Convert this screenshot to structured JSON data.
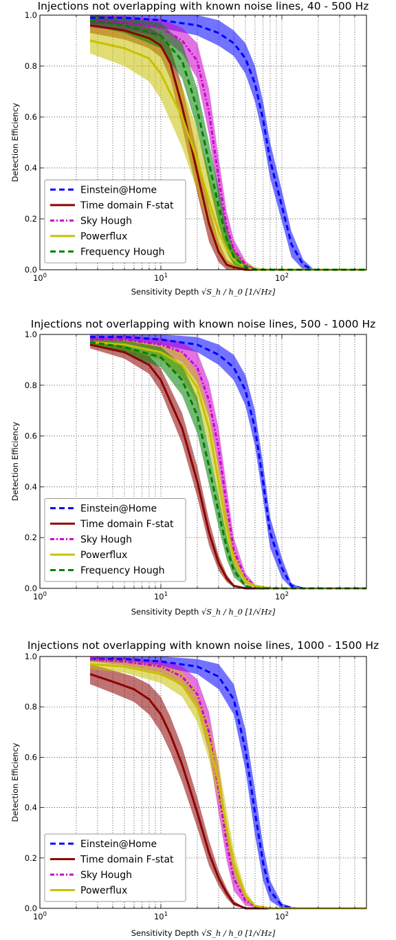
{
  "colors": {
    "Einstein@Home": "#0000ff",
    "Time domain F-stat": "#8b0000",
    "Sky Hough": "#cc00cc",
    "Powerflux": "#c8c000",
    "Frequency Hough": "#007f00"
  },
  "chart_data": [
    {
      "type": "line",
      "title": "Injections not overlapping with known noise lines, 40 - 500 Hz",
      "xlabel_text": "Sensitivity Depth",
      "xlabel_math": "√S_h / h_0  [1/√Hz]",
      "ylabel": "Detection Efficiency",
      "xscale": "log",
      "xlim": [
        1,
        500
      ],
      "ylim": [
        0,
        1
      ],
      "xticks": [
        "10^0",
        "10^1",
        "10^2"
      ],
      "yticks": [
        "0.0",
        "0.2",
        "0.4",
        "0.6",
        "0.8",
        "1.0"
      ],
      "grid": true,
      "legend_position": "lower-left",
      "series": [
        {
          "name": "Einstein@Home",
          "style": "dashed",
          "x": [
            2.6,
            5,
            10,
            20,
            30,
            40,
            50,
            60,
            70,
            80,
            100,
            120,
            150,
            180,
            250,
            500
          ],
          "y": [
            0.99,
            0.99,
            0.98,
            0.96,
            0.93,
            0.89,
            0.83,
            0.73,
            0.59,
            0.43,
            0.25,
            0.1,
            0.02,
            0.0,
            0.0,
            0.0
          ],
          "band": [
            0.025,
            0.025,
            0.03,
            0.04,
            0.05,
            0.05,
            0.06,
            0.07,
            0.07,
            0.07,
            0.06,
            0.05,
            0.02,
            0.005,
            0.0,
            0.0
          ]
        },
        {
          "name": "Time domain F-stat",
          "style": "solid",
          "x": [
            2.6,
            5,
            8,
            10,
            12,
            15,
            20,
            25,
            30,
            35,
            40,
            50,
            80,
            500
          ],
          "y": [
            0.96,
            0.94,
            0.91,
            0.88,
            0.81,
            0.64,
            0.38,
            0.18,
            0.07,
            0.02,
            0.01,
            0.0,
            0.0,
            0.0
          ],
          "band": [
            0.03,
            0.035,
            0.04,
            0.045,
            0.06,
            0.08,
            0.08,
            0.07,
            0.04,
            0.02,
            0.01,
            0.0,
            0.0,
            0.0
          ]
        },
        {
          "name": "Sky Hough",
          "style": "dashdot",
          "x": [
            2.6,
            5,
            10,
            15,
            20,
            25,
            30,
            35,
            40,
            50,
            60,
            80,
            500
          ],
          "y": [
            0.98,
            0.97,
            0.95,
            0.9,
            0.82,
            0.62,
            0.36,
            0.17,
            0.08,
            0.02,
            0.0,
            0.0,
            0.0
          ],
          "band": [
            0.02,
            0.025,
            0.035,
            0.05,
            0.07,
            0.09,
            0.08,
            0.06,
            0.04,
            0.015,
            0.005,
            0.0,
            0.0
          ]
        },
        {
          "name": "Powerflux",
          "style": "solid",
          "x": [
            2.6,
            5,
            8,
            10,
            15,
            20,
            25,
            30,
            35,
            40,
            50,
            60,
            80,
            500
          ],
          "y": [
            0.9,
            0.87,
            0.83,
            0.77,
            0.6,
            0.43,
            0.27,
            0.15,
            0.08,
            0.04,
            0.01,
            0.0,
            0.0,
            0.0
          ],
          "band": [
            0.05,
            0.07,
            0.09,
            0.1,
            0.12,
            0.12,
            0.11,
            0.09,
            0.06,
            0.04,
            0.02,
            0.01,
            0.0,
            0.0
          ]
        },
        {
          "name": "Frequency Hough",
          "style": "dashed",
          "x": [
            2.6,
            5,
            10,
            15,
            20,
            25,
            30,
            35,
            40,
            50,
            60,
            80,
            500
          ],
          "y": [
            0.98,
            0.96,
            0.92,
            0.82,
            0.63,
            0.42,
            0.25,
            0.12,
            0.05,
            0.01,
            0.0,
            0.0,
            0.0
          ],
          "band": [
            0.02,
            0.03,
            0.05,
            0.07,
            0.08,
            0.08,
            0.07,
            0.05,
            0.03,
            0.01,
            0.005,
            0.0,
            0.0
          ]
        }
      ]
    },
    {
      "type": "line",
      "title": "Injections not overlapping with known noise lines, 500 - 1000 Hz",
      "xlabel_text": "Sensitivity Depth",
      "xlabel_math": "√S_h / h_0  [1/√Hz]",
      "ylabel": "Detection Efficiency",
      "xscale": "log",
      "xlim": [
        1,
        500
      ],
      "ylim": [
        0,
        1
      ],
      "xticks": [
        "10^0",
        "10^1",
        "10^2"
      ],
      "yticks": [
        "0.0",
        "0.2",
        "0.4",
        "0.6",
        "0.8",
        "1.0"
      ],
      "grid": true,
      "legend_position": "lower-left",
      "series": [
        {
          "name": "Einstein@Home",
          "style": "dashed",
          "x": [
            2.6,
            5,
            10,
            20,
            30,
            40,
            50,
            60,
            70,
            80,
            100,
            120,
            150,
            500
          ],
          "y": [
            0.99,
            0.99,
            0.98,
            0.96,
            0.92,
            0.87,
            0.78,
            0.63,
            0.42,
            0.22,
            0.08,
            0.01,
            0.0,
            0.0
          ],
          "band": [
            0.01,
            0.015,
            0.02,
            0.03,
            0.04,
            0.05,
            0.06,
            0.07,
            0.07,
            0.06,
            0.04,
            0.01,
            0.0,
            0.0
          ]
        },
        {
          "name": "Time domain F-stat",
          "style": "solid",
          "x": [
            2.6,
            5,
            8,
            10,
            15,
            20,
            25,
            30,
            35,
            40,
            50,
            60,
            500
          ],
          "y": [
            0.96,
            0.93,
            0.88,
            0.82,
            0.63,
            0.42,
            0.22,
            0.1,
            0.04,
            0.01,
            0.0,
            0.0,
            0.0
          ],
          "band": [
            0.015,
            0.025,
            0.035,
            0.045,
            0.06,
            0.06,
            0.05,
            0.03,
            0.015,
            0.005,
            0.0,
            0.0,
            0.0
          ]
        },
        {
          "name": "Sky Hough",
          "style": "dashdot",
          "x": [
            2.6,
            5,
            10,
            15,
            20,
            25,
            30,
            35,
            40,
            50,
            60,
            80,
            500
          ],
          "y": [
            0.98,
            0.98,
            0.96,
            0.93,
            0.87,
            0.74,
            0.55,
            0.33,
            0.15,
            0.04,
            0.01,
            0.0,
            0.0
          ],
          "band": [
            0.01,
            0.015,
            0.025,
            0.04,
            0.06,
            0.07,
            0.08,
            0.07,
            0.05,
            0.02,
            0.005,
            0.0,
            0.0
          ]
        },
        {
          "name": "Powerflux",
          "style": "solid",
          "x": [
            2.6,
            5,
            10,
            15,
            20,
            25,
            30,
            35,
            40,
            50,
            60,
            80,
            500
          ],
          "y": [
            0.97,
            0.96,
            0.93,
            0.88,
            0.79,
            0.63,
            0.42,
            0.24,
            0.12,
            0.03,
            0.01,
            0.0,
            0.0
          ],
          "band": [
            0.01,
            0.02,
            0.03,
            0.05,
            0.06,
            0.07,
            0.07,
            0.06,
            0.04,
            0.015,
            0.005,
            0.0,
            0.0
          ]
        },
        {
          "name": "Frequency Hough",
          "style": "dashed",
          "x": [
            2.6,
            5,
            10,
            15,
            20,
            25,
            30,
            35,
            40,
            50,
            60,
            500
          ],
          "y": [
            0.97,
            0.95,
            0.91,
            0.82,
            0.68,
            0.48,
            0.3,
            0.16,
            0.07,
            0.01,
            0.0,
            0.0
          ],
          "band": [
            0.015,
            0.025,
            0.04,
            0.06,
            0.07,
            0.07,
            0.06,
            0.045,
            0.025,
            0.005,
            0.0,
            0.0
          ]
        }
      ]
    },
    {
      "type": "line",
      "title": "Injections not overlapping with known noise lines, 1000 - 1500 Hz",
      "xlabel_text": "Sensitivity Depth",
      "xlabel_math": "√S_h / h_0  [1/√Hz]",
      "ylabel": "Detection Efficiency",
      "xscale": "log",
      "xlim": [
        1,
        500
      ],
      "ylim": [
        0,
        1
      ],
      "xticks": [
        "10^0",
        "10^1",
        "10^2"
      ],
      "yticks": [
        "0.0",
        "0.2",
        "0.4",
        "0.6",
        "0.8",
        "1.0"
      ],
      "grid": true,
      "legend_position": "lower-left",
      "series": [
        {
          "name": "Einstein@Home",
          "style": "dashed",
          "x": [
            2.6,
            5,
            10,
            20,
            30,
            40,
            50,
            60,
            70,
            80,
            100,
            130,
            500
          ],
          "y": [
            0.99,
            0.99,
            0.98,
            0.96,
            0.92,
            0.83,
            0.63,
            0.38,
            0.18,
            0.07,
            0.01,
            0.0,
            0.0
          ],
          "band": [
            0.01,
            0.015,
            0.02,
            0.03,
            0.05,
            0.06,
            0.08,
            0.09,
            0.07,
            0.04,
            0.01,
            0.0,
            0.0
          ]
        },
        {
          "name": "Time domain F-stat",
          "style": "solid",
          "x": [
            2.6,
            4,
            6,
            8,
            10,
            12,
            15,
            20,
            25,
            30,
            35,
            40,
            50,
            60,
            500
          ],
          "y": [
            0.93,
            0.9,
            0.87,
            0.83,
            0.77,
            0.69,
            0.57,
            0.38,
            0.22,
            0.12,
            0.06,
            0.02,
            0.0,
            0.0,
            0.0
          ],
          "band": [
            0.04,
            0.045,
            0.05,
            0.06,
            0.07,
            0.07,
            0.07,
            0.06,
            0.05,
            0.03,
            0.02,
            0.01,
            0.0,
            0.0,
            0.0
          ]
        },
        {
          "name": "Sky Hough",
          "style": "dashdot",
          "x": [
            2.6,
            5,
            10,
            15,
            20,
            25,
            30,
            35,
            40,
            50,
            60,
            80,
            500
          ],
          "y": [
            0.99,
            0.98,
            0.96,
            0.92,
            0.85,
            0.7,
            0.47,
            0.26,
            0.12,
            0.03,
            0.01,
            0.0,
            0.0
          ],
          "band": [
            0.01,
            0.015,
            0.025,
            0.04,
            0.06,
            0.08,
            0.09,
            0.07,
            0.05,
            0.02,
            0.005,
            0.0,
            0.0
          ]
        },
        {
          "name": "Powerflux",
          "style": "solid",
          "x": [
            2.6,
            5,
            10,
            15,
            20,
            25,
            30,
            35,
            40,
            50,
            60,
            80,
            500
          ],
          "y": [
            0.97,
            0.96,
            0.93,
            0.89,
            0.8,
            0.66,
            0.5,
            0.32,
            0.18,
            0.05,
            0.01,
            0.0,
            0.0
          ],
          "band": [
            0.02,
            0.025,
            0.035,
            0.05,
            0.06,
            0.07,
            0.08,
            0.07,
            0.05,
            0.02,
            0.005,
            0.0,
            0.0
          ]
        }
      ]
    }
  ]
}
